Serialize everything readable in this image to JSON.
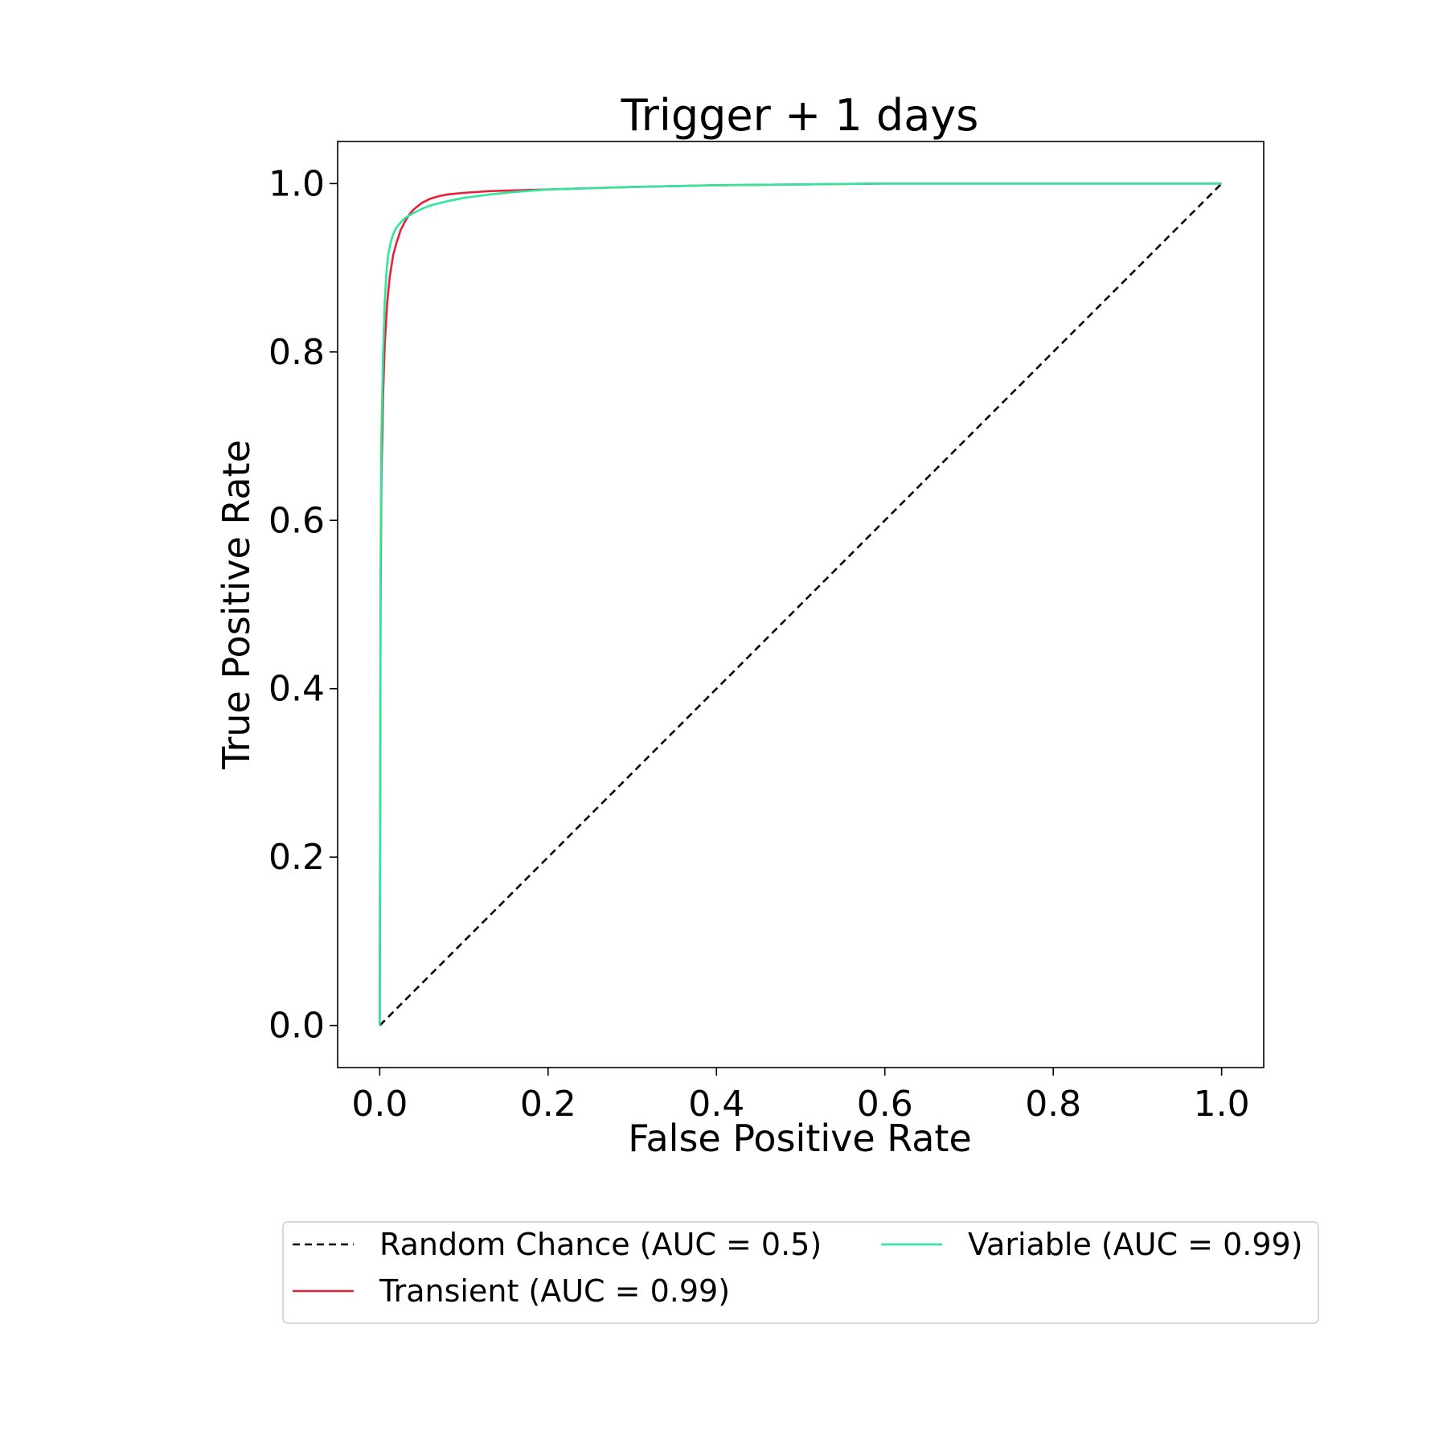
{
  "chart_data": {
    "type": "line",
    "title": "Trigger + 1 days",
    "xlabel": "False Positive Rate",
    "ylabel": "True Positive Rate",
    "xlim": [
      -0.05,
      1.05
    ],
    "ylim": [
      -0.05,
      1.05
    ],
    "xticks": [
      0.0,
      0.2,
      0.4,
      0.6,
      0.8,
      1.0
    ],
    "yticks": [
      0.0,
      0.2,
      0.4,
      0.6,
      0.8,
      1.0
    ],
    "xtick_labels": [
      "0.0",
      "0.2",
      "0.4",
      "0.6",
      "0.8",
      "1.0"
    ],
    "ytick_labels": [
      "0.0",
      "0.2",
      "0.4",
      "0.6",
      "0.8",
      "1.0"
    ],
    "grid": false,
    "legend_placement": "below",
    "series": [
      {
        "name": "Random Chance (AUC = 0.5)",
        "color": "#000000",
        "style": "dashed",
        "x": [
          0.0,
          1.0
        ],
        "y": [
          0.0,
          1.0
        ]
      },
      {
        "name": "Transient (AUC = 0.99)",
        "color": "#e8203a",
        "style": "solid",
        "x": [
          0.0,
          0.001,
          0.002,
          0.004,
          0.006,
          0.009,
          0.012,
          0.016,
          0.02,
          0.025,
          0.03,
          0.035,
          0.04,
          0.05,
          0.06,
          0.07,
          0.08,
          0.1,
          0.13,
          0.16,
          0.2,
          0.3,
          0.4,
          0.5,
          0.6,
          0.8,
          1.0
        ],
        "y": [
          0.0,
          0.5,
          0.65,
          0.75,
          0.81,
          0.86,
          0.89,
          0.915,
          0.93,
          0.945,
          0.955,
          0.963,
          0.969,
          0.977,
          0.982,
          0.985,
          0.987,
          0.989,
          0.991,
          0.992,
          0.993,
          0.996,
          0.998,
          0.999,
          1.0,
          1.0,
          1.0
        ]
      },
      {
        "name": "Variable (AUC = 0.99)",
        "color": "#2ee89a",
        "style": "solid",
        "x": [
          0.0,
          0.001,
          0.002,
          0.004,
          0.006,
          0.008,
          0.01,
          0.013,
          0.016,
          0.02,
          0.025,
          0.03,
          0.04,
          0.05,
          0.06,
          0.08,
          0.1,
          0.13,
          0.16,
          0.2,
          0.3,
          0.4,
          0.5,
          0.6,
          0.8,
          1.0
        ],
        "y": [
          0.0,
          0.55,
          0.7,
          0.8,
          0.86,
          0.895,
          0.915,
          0.93,
          0.94,
          0.948,
          0.954,
          0.959,
          0.965,
          0.97,
          0.974,
          0.979,
          0.983,
          0.987,
          0.99,
          0.993,
          0.996,
          0.998,
          0.999,
          1.0,
          1.0,
          1.0
        ]
      }
    ]
  }
}
